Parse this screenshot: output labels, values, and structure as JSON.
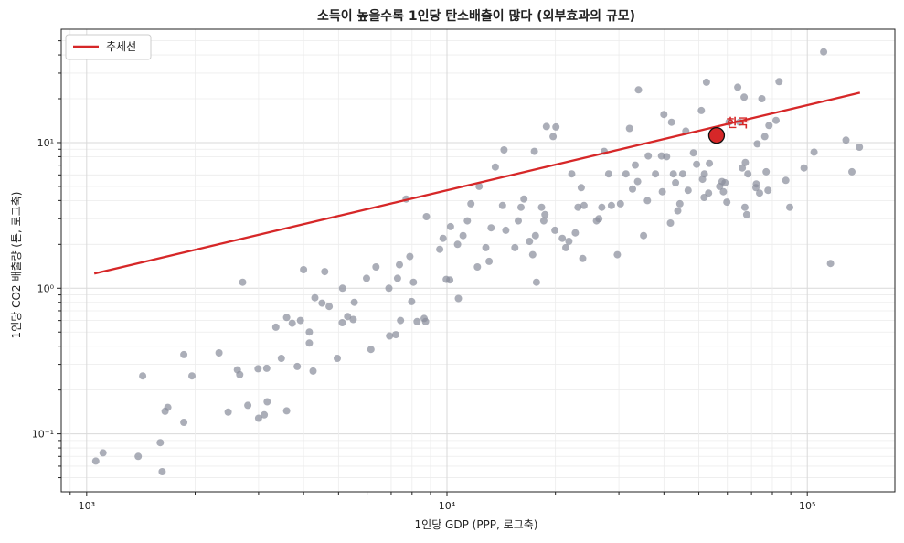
{
  "chart_data": {
    "type": "scatter",
    "title": "소득이 높을수록 1인당 탄소배출이 많다 (외부효과의 규모)",
    "xlabel": "1인당 GDP (PPP, 로그축)",
    "ylabel": "1인당 CO2 배출량 (톤, 로그축)",
    "xscale": "log",
    "yscale": "log",
    "xlim": [
      850,
      175000
    ],
    "ylim": [
      0.04,
      60
    ],
    "x_ticks": [
      {
        "value": 1000,
        "label": "10³"
      },
      {
        "value": 10000,
        "label": "10⁴"
      },
      {
        "value": 100000,
        "label": "10⁵"
      }
    ],
    "y_ticks": [
      {
        "value": 0.1,
        "label": "10⁻¹"
      },
      {
        "value": 1,
        "label": "10⁰"
      },
      {
        "value": 10,
        "label": "10¹"
      }
    ],
    "grid": true,
    "legend_position": "top-left",
    "colors": {
      "points": "#8b8f9c",
      "trend": "#d62728",
      "highlight": "#d62728"
    },
    "series": [
      {
        "name": "",
        "kind": "points",
        "points": [
          [
            1060,
            0.065
          ],
          [
            1110,
            0.074
          ],
          [
            1390,
            0.07
          ],
          [
            1430,
            0.25
          ],
          [
            1600,
            0.087
          ],
          [
            1620,
            0.055
          ],
          [
            1650,
            0.143
          ],
          [
            1680,
            0.152
          ],
          [
            1860,
            0.35
          ],
          [
            1860,
            0.12
          ],
          [
            1960,
            0.25
          ],
          [
            2330,
            0.36
          ],
          [
            2470,
            0.141
          ],
          [
            2620,
            0.275
          ],
          [
            2660,
            0.255
          ],
          [
            2710,
            1.1
          ],
          [
            2800,
            0.157
          ],
          [
            2990,
            0.28
          ],
          [
            3000,
            0.128
          ],
          [
            3110,
            0.135
          ],
          [
            3160,
            0.282
          ],
          [
            3170,
            0.166
          ],
          [
            3350,
            0.54
          ],
          [
            3470,
            0.33
          ],
          [
            3590,
            0.144
          ],
          [
            3590,
            0.63
          ],
          [
            3720,
            0.575
          ],
          [
            3840,
            0.29
          ],
          [
            3920,
            0.6
          ],
          [
            4000,
            1.34
          ],
          [
            4150,
            0.5
          ],
          [
            4150,
            0.42
          ],
          [
            4250,
            0.27
          ],
          [
            4300,
            0.86
          ],
          [
            4500,
            0.79
          ],
          [
            4580,
            1.3
          ],
          [
            4710,
            0.75
          ],
          [
            4960,
            0.33
          ],
          [
            5130,
            1.0
          ],
          [
            5120,
            0.58
          ],
          [
            5300,
            0.64
          ],
          [
            5490,
            0.61
          ],
          [
            5530,
            0.8
          ],
          [
            5980,
            1.17
          ],
          [
            6150,
            0.38
          ],
          [
            6350,
            1.4
          ],
          [
            6900,
            1.0
          ],
          [
            6930,
            0.47
          ],
          [
            7210,
            0.48
          ],
          [
            7290,
            1.17
          ],
          [
            7380,
            1.45
          ],
          [
            7430,
            0.6
          ],
          [
            7700,
            4.1
          ],
          [
            7890,
            1.65
          ],
          [
            7980,
            0.81
          ],
          [
            8070,
            1.1
          ],
          [
            8260,
            0.59
          ],
          [
            8640,
            0.62
          ],
          [
            8720,
            0.59
          ],
          [
            8770,
            3.1
          ],
          [
            9550,
            1.85
          ],
          [
            9750,
            2.2
          ],
          [
            9950,
            1.15
          ],
          [
            10180,
            1.14
          ],
          [
            10230,
            2.65
          ],
          [
            10700,
            2.0
          ],
          [
            10760,
            0.85
          ],
          [
            11080,
            2.3
          ],
          [
            11390,
            2.9
          ],
          [
            11650,
            3.8
          ],
          [
            12150,
            1.4
          ],
          [
            12280,
            5.0
          ],
          [
            12820,
            1.9
          ],
          [
            13090,
            1.53
          ],
          [
            13260,
            2.6
          ],
          [
            13620,
            6.8
          ],
          [
            14260,
            3.7
          ],
          [
            14400,
            8.9
          ],
          [
            14570,
            2.5
          ],
          [
            15430,
            1.9
          ],
          [
            15770,
            2.9
          ],
          [
            16050,
            3.6
          ],
          [
            16350,
            4.1
          ],
          [
            16950,
            2.1
          ],
          [
            17300,
            1.7
          ],
          [
            17600,
            2.3
          ],
          [
            17480,
            8.7
          ],
          [
            17710,
            1.1
          ],
          [
            18300,
            3.6
          ],
          [
            18560,
            2.9
          ],
          [
            18700,
            3.2
          ],
          [
            18880,
            12.9
          ],
          [
            19700,
            11.0
          ],
          [
            19930,
            2.5
          ],
          [
            20060,
            12.8
          ],
          [
            20900,
            2.2
          ],
          [
            21370,
            1.9
          ],
          [
            21800,
            2.1
          ],
          [
            22200,
            6.1
          ],
          [
            22700,
            2.4
          ],
          [
            23100,
            3.6
          ],
          [
            23580,
            4.9
          ],
          [
            23810,
            1.6
          ],
          [
            24000,
            3.7
          ],
          [
            26000,
            2.9
          ],
          [
            26400,
            3.0
          ],
          [
            26900,
            3.6
          ],
          [
            27310,
            8.7
          ],
          [
            28100,
            6.1
          ],
          [
            28600,
            3.7
          ],
          [
            29700,
            1.7
          ],
          [
            30300,
            3.8
          ],
          [
            31390,
            6.1
          ],
          [
            32100,
            12.5
          ],
          [
            32730,
            4.8
          ],
          [
            33300,
            7.0
          ],
          [
            33820,
            5.4
          ],
          [
            34000,
            23.0
          ],
          [
            35120,
            2.3
          ],
          [
            36000,
            4.0
          ],
          [
            36200,
            8.1
          ],
          [
            37900,
            6.1
          ],
          [
            39400,
            8.1
          ],
          [
            39600,
            4.6
          ],
          [
            40000,
            15.6
          ],
          [
            40700,
            8.0
          ],
          [
            41700,
            2.8
          ],
          [
            42000,
            13.8
          ],
          [
            42500,
            6.1
          ],
          [
            43100,
            5.3
          ],
          [
            43700,
            3.4
          ],
          [
            44300,
            3.8
          ],
          [
            45100,
            6.1
          ],
          [
            46000,
            12.0
          ],
          [
            46700,
            4.7
          ],
          [
            48300,
            8.5
          ],
          [
            49300,
            7.1
          ],
          [
            50800,
            16.6
          ],
          [
            51200,
            5.6
          ],
          [
            51700,
            4.2
          ],
          [
            51800,
            6.1
          ],
          [
            52500,
            26.0
          ],
          [
            53200,
            4.5
          ],
          [
            53500,
            7.2
          ],
          [
            57100,
            5.0
          ],
          [
            58000,
            5.4
          ],
          [
            58500,
            4.6
          ],
          [
            59100,
            5.3
          ],
          [
            59800,
            3.9
          ],
          [
            60600,
            13.8
          ],
          [
            64100,
            24.0
          ],
          [
            64900,
            13.8
          ],
          [
            66000,
            6.7
          ],
          [
            66800,
            20.5
          ],
          [
            67100,
            3.6
          ],
          [
            67300,
            7.3
          ],
          [
            67900,
            3.2
          ],
          [
            68400,
            6.1
          ],
          [
            72000,
            4.9
          ],
          [
            72200,
            5.2
          ],
          [
            72600,
            9.8
          ],
          [
            73700,
            4.5
          ],
          [
            74800,
            20.0
          ],
          [
            76200,
            11.0
          ],
          [
            76900,
            6.3
          ],
          [
            77800,
            4.7
          ],
          [
            78300,
            13.1
          ],
          [
            81900,
            14.2
          ],
          [
            83500,
            26.2
          ],
          [
            87200,
            5.5
          ],
          [
            89400,
            3.6
          ],
          [
            97900,
            6.7
          ],
          [
            104400,
            8.6
          ],
          [
            111000,
            42.0
          ],
          [
            116000,
            1.48
          ],
          [
            128000,
            10.4
          ],
          [
            133000,
            6.3
          ],
          [
            139500,
            9.3
          ]
        ]
      },
      {
        "name": "추세선",
        "kind": "trend",
        "points": [
          [
            1050,
            1.26
          ],
          [
            140000,
            22.0
          ]
        ]
      }
    ],
    "highlight": {
      "label": "한국",
      "x": 56000,
      "y": 11.2
    }
  }
}
